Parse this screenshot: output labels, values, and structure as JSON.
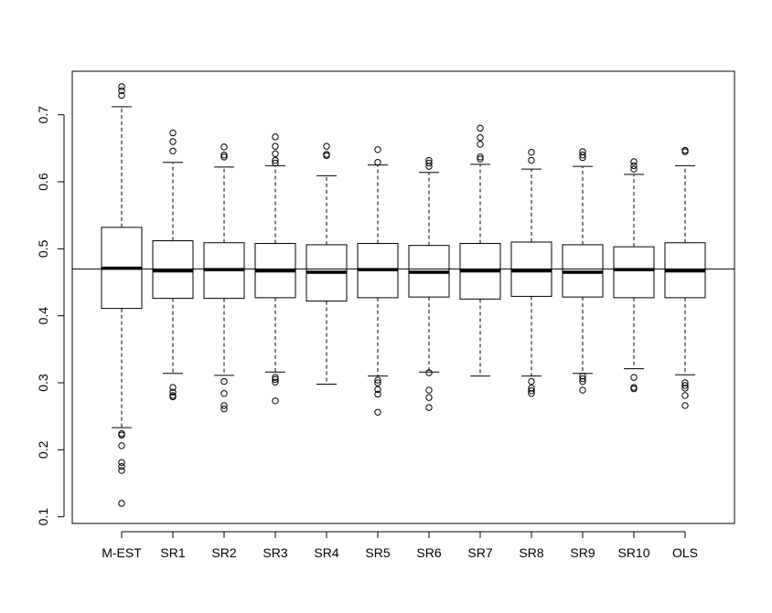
{
  "chart_data": {
    "type": "boxplot",
    "title": "",
    "xlabel": "",
    "ylabel": "",
    "ylim": [
      0.09,
      0.765
    ],
    "yticks": [
      0.1,
      0.2,
      0.3,
      0.4,
      0.5,
      0.6,
      0.7
    ],
    "yticks_labels": [
      "0.1",
      "0.2",
      "0.3",
      "0.4",
      "0.5",
      "0.6",
      "0.7"
    ],
    "reference_line": 0.47,
    "grid": false,
    "categories": [
      "M-EST",
      "SR1",
      "SR2",
      "SR3",
      "SR4",
      "SR5",
      "SR6",
      "SR7",
      "SR8",
      "SR9",
      "SR10",
      "OLS"
    ],
    "boxes": [
      {
        "label": "M-EST",
        "whisker_low": 0.233,
        "q1": 0.411,
        "median": 0.471,
        "q3": 0.532,
        "whisker_high": 0.712,
        "outliers": [
          0.742,
          0.736,
          0.729,
          0.224,
          0.222,
          0.206,
          0.181,
          0.175,
          0.169,
          0.12
        ]
      },
      {
        "label": "SR1",
        "whisker_low": 0.314,
        "q1": 0.426,
        "median": 0.467,
        "q3": 0.512,
        "whisker_high": 0.629,
        "outliers": [
          0.673,
          0.66,
          0.646,
          0.293,
          0.286,
          0.281,
          0.279
        ]
      },
      {
        "label": "SR2",
        "whisker_low": 0.311,
        "q1": 0.426,
        "median": 0.469,
        "q3": 0.509,
        "whisker_high": 0.622,
        "outliers": [
          0.652,
          0.64,
          0.637,
          0.302,
          0.284,
          0.266,
          0.261
        ]
      },
      {
        "label": "SR3",
        "whisker_low": 0.316,
        "q1": 0.427,
        "median": 0.467,
        "q3": 0.508,
        "whisker_high": 0.624,
        "outliers": [
          0.667,
          0.653,
          0.642,
          0.632,
          0.628,
          0.308,
          0.305,
          0.301,
          0.273
        ]
      },
      {
        "label": "SR4",
        "whisker_low": 0.298,
        "q1": 0.422,
        "median": 0.465,
        "q3": 0.506,
        "whisker_high": 0.609,
        "outliers": [
          0.653,
          0.641,
          0.639
        ]
      },
      {
        "label": "SR5",
        "whisker_low": 0.31,
        "q1": 0.427,
        "median": 0.469,
        "q3": 0.508,
        "whisker_high": 0.625,
        "outliers": [
          0.648,
          0.629,
          0.304,
          0.3,
          0.29,
          0.283,
          0.256
        ]
      },
      {
        "label": "SR6",
        "whisker_low": 0.316,
        "q1": 0.428,
        "median": 0.465,
        "q3": 0.505,
        "whisker_high": 0.614,
        "outliers": [
          0.632,
          0.628,
          0.623,
          0.315,
          0.289,
          0.278,
          0.263
        ]
      },
      {
        "label": "SR7",
        "whisker_low": 0.31,
        "q1": 0.425,
        "median": 0.467,
        "q3": 0.508,
        "whisker_high": 0.626,
        "outliers": [
          0.68,
          0.666,
          0.656,
          0.637,
          0.634
        ]
      },
      {
        "label": "SR8",
        "whisker_low": 0.31,
        "q1": 0.429,
        "median": 0.467,
        "q3": 0.51,
        "whisker_high": 0.619,
        "outliers": [
          0.644,
          0.632,
          0.302,
          0.292,
          0.288,
          0.284
        ]
      },
      {
        "label": "SR9",
        "whisker_low": 0.314,
        "q1": 0.428,
        "median": 0.465,
        "q3": 0.506,
        "whisker_high": 0.623,
        "outliers": [
          0.645,
          0.64,
          0.636,
          0.31,
          0.306,
          0.302,
          0.289
        ]
      },
      {
        "label": "SR10",
        "whisker_low": 0.321,
        "q1": 0.427,
        "median": 0.469,
        "q3": 0.503,
        "whisker_high": 0.611,
        "outliers": [
          0.63,
          0.624,
          0.619,
          0.308,
          0.293,
          0.291
        ]
      },
      {
        "label": "OLS",
        "whisker_low": 0.312,
        "q1": 0.427,
        "median": 0.467,
        "q3": 0.509,
        "whisker_high": 0.624,
        "outliers": [
          0.647,
          0.645,
          0.3,
          0.296,
          0.292,
          0.281,
          0.266
        ]
      }
    ]
  }
}
